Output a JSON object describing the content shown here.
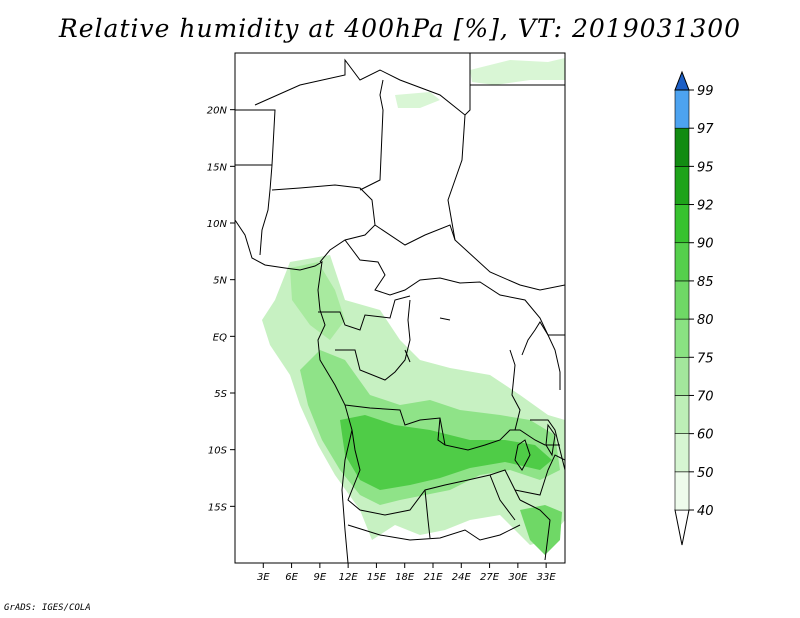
{
  "title": "Relative humidity at 400hPa [%], VT: 2019031300",
  "credit": "GrADS: IGES/COLA",
  "map": {
    "lon_range": [
      0,
      35
    ],
    "lat_range": [
      -20,
      25
    ],
    "lat_labels": [
      {
        "value": 20,
        "text": "20N"
      },
      {
        "value": 15,
        "text": "15N"
      },
      {
        "value": 10,
        "text": "10N"
      },
      {
        "value": 5,
        "text": "5N"
      },
      {
        "value": 0,
        "text": "EQ"
      },
      {
        "value": -5,
        "text": "5S"
      },
      {
        "value": -10,
        "text": "10S"
      },
      {
        "value": -15,
        "text": "15S"
      }
    ],
    "lon_labels": [
      {
        "value": 3,
        "text": "3E"
      },
      {
        "value": 6,
        "text": "6E"
      },
      {
        "value": 9,
        "text": "9E"
      },
      {
        "value": 12,
        "text": "12E"
      },
      {
        "value": 15,
        "text": "15E"
      },
      {
        "value": 18,
        "text": "18E"
      },
      {
        "value": 21,
        "text": "21E"
      },
      {
        "value": 24,
        "text": "24E"
      },
      {
        "value": 27,
        "text": "27E"
      },
      {
        "value": 30,
        "text": "30E"
      },
      {
        "value": 33,
        "text": "33E"
      }
    ]
  },
  "colorbar": {
    "levels": [
      "40",
      "50",
      "60",
      "70",
      "75",
      "80",
      "85",
      "90",
      "92",
      "95",
      "97",
      "99"
    ],
    "colors": [
      "#eefbec",
      "#d6f5d2",
      "#bdefb7",
      "#a3e79c",
      "#8ae282",
      "#6fd866",
      "#55cf4c",
      "#37c22f",
      "#1ea31a",
      "#128b12",
      "#4da3f0",
      "#2a78dc",
      "#1c5fc6"
    ]
  }
}
